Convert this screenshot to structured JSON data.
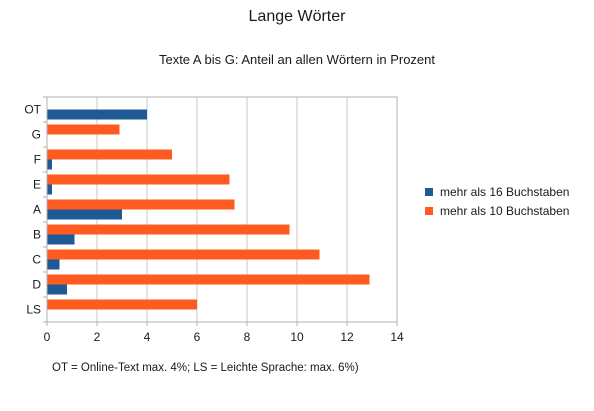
{
  "chart_data": {
    "type": "bar",
    "orientation": "horizontal",
    "title": "Lange Wörter",
    "subtitle": "Texte A bis G: Anteil an allen Wörtern in Prozent",
    "xlabel": "",
    "ylabel": "",
    "categories": [
      "OT",
      "G",
      "F",
      "E",
      "A",
      "B",
      "C",
      "D",
      "LS"
    ],
    "series": [
      {
        "name": "mehr als 16 Buchstaben",
        "color": "#1f5a96",
        "values": [
          4.0,
          null,
          0.2,
          0.2,
          3.0,
          1.1,
          0.5,
          0.8,
          null
        ]
      },
      {
        "name": "mehr als 10 Buchstaben",
        "color": "#ff5a1f",
        "values": [
          null,
          2.9,
          5.0,
          7.3,
          7.5,
          9.7,
          10.9,
          12.9,
          6.0
        ]
      }
    ],
    "xlim": [
      0,
      14
    ],
    "xticks": [
      "0",
      "2",
      "4",
      "6",
      "8",
      "10",
      "12",
      "14"
    ],
    "grid": true,
    "legend_position": "right",
    "footnote": "OT = Online-Text max. 4%;  LS =  Leichte Sprache: max. 6%)"
  }
}
